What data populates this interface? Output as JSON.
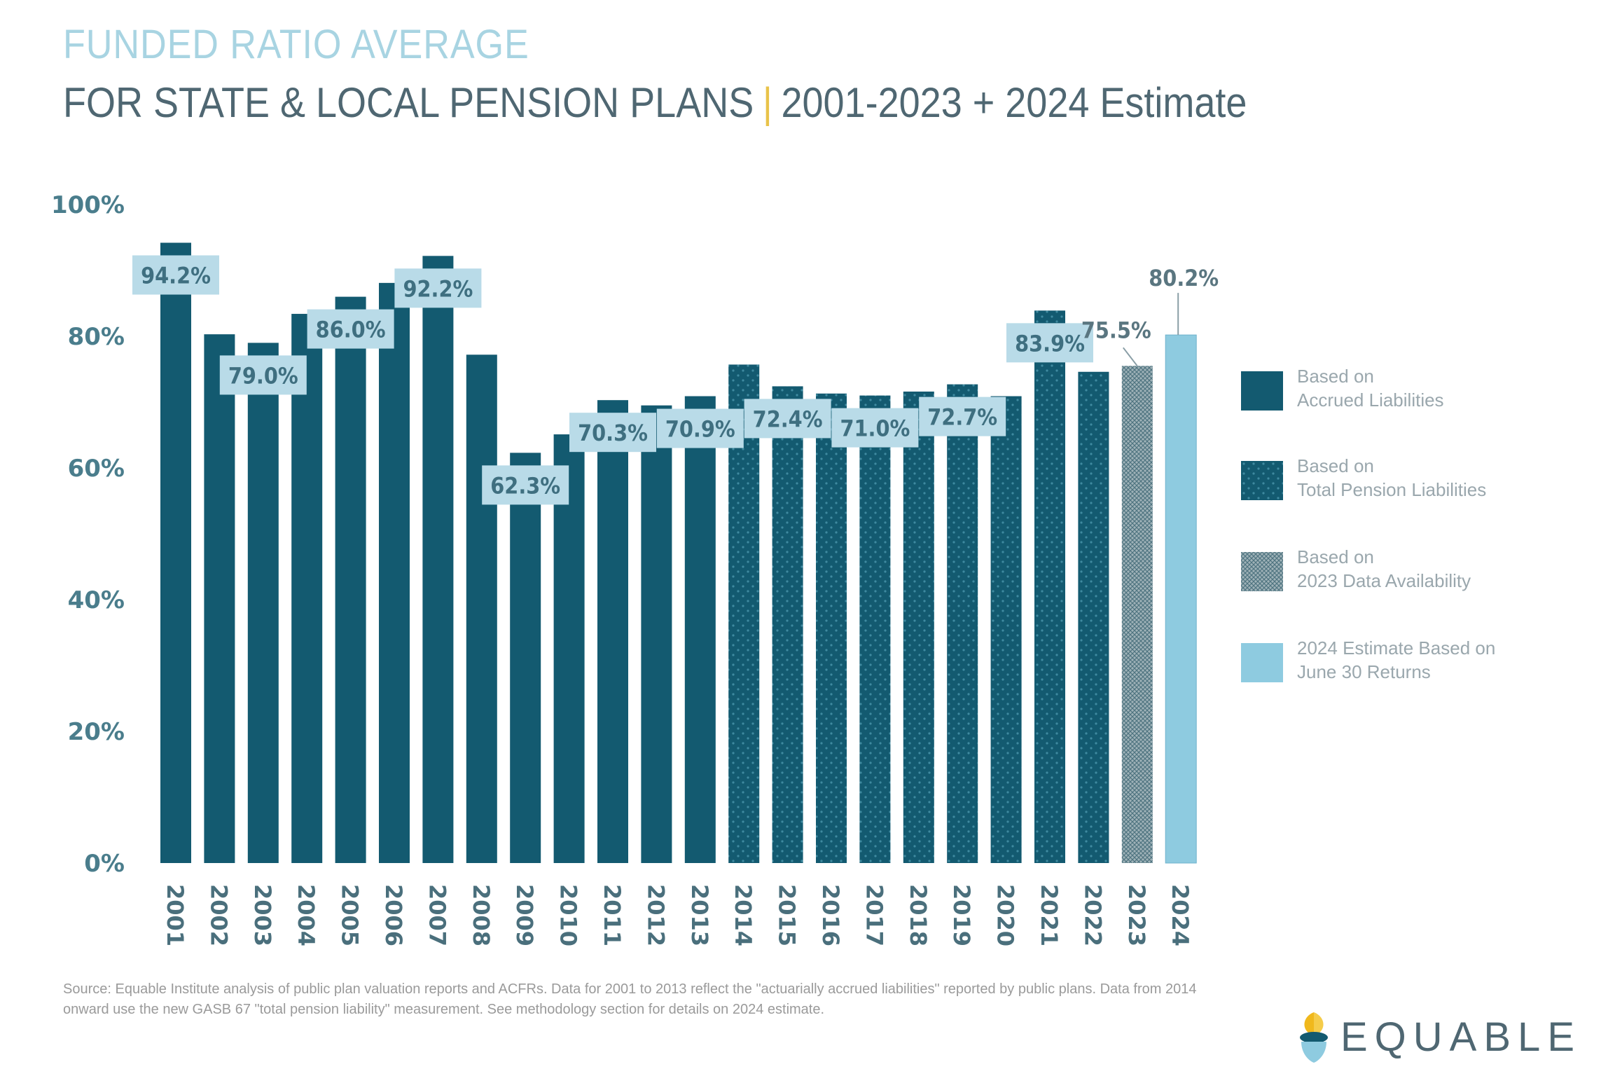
{
  "header": {
    "title": "FUNDED RATIO AVERAGE",
    "subtitle_main": "FOR STATE & LOCAL PENSION PLANS",
    "subtitle_sep": "|",
    "subtitle_range": "2001-2023 + 2024 Estimate"
  },
  "chart_data": {
    "type": "bar",
    "title": "Funded Ratio Average for State & Local Pension Plans 2001-2023 + 2024 Estimate",
    "xlabel": "",
    "ylabel": "",
    "ylim": [
      0,
      100
    ],
    "yticks": [
      "0%",
      "20%",
      "40%",
      "60%",
      "80%",
      "100%"
    ],
    "ytick_values": [
      0,
      20,
      40,
      60,
      80,
      100
    ],
    "categories": [
      "2001",
      "2002",
      "2003",
      "2004",
      "2005",
      "2006",
      "2007",
      "2008",
      "2009",
      "2010",
      "2011",
      "2012",
      "2013",
      "2014",
      "2015",
      "2016",
      "2017",
      "2018",
      "2019",
      "2020",
      "2021",
      "2022",
      "2023",
      "2024"
    ],
    "values": [
      94.2,
      80.3,
      79.0,
      83.4,
      86.0,
      88.1,
      92.2,
      77.2,
      62.3,
      65.1,
      70.3,
      69.5,
      70.9,
      75.7,
      72.4,
      71.3,
      71.0,
      71.6,
      72.7,
      70.9,
      83.9,
      74.6,
      75.5,
      80.2
    ],
    "series_type": [
      "accrued",
      "accrued",
      "accrued",
      "accrued",
      "accrued",
      "accrued",
      "accrued",
      "accrued",
      "accrued",
      "accrued",
      "accrued",
      "accrued",
      "accrued",
      "total",
      "total",
      "total",
      "total",
      "total",
      "total",
      "total",
      "total",
      "total",
      "availability",
      "estimate"
    ],
    "data_labels": {
      "2001": "94.2%",
      "2003": "79.0%",
      "2005": "86.0%",
      "2007": "92.2%",
      "2009": "62.3%",
      "2011": "70.3%",
      "2013": "70.9%",
      "2015": "72.4%",
      "2017": "71.0%",
      "2019": "72.7%",
      "2021": "83.9%",
      "2023": "75.5%",
      "2024": "80.2%"
    },
    "legend": [
      {
        "key": "accrued",
        "label": "Based on\nAccrued Liabilities"
      },
      {
        "key": "total",
        "label": "Based on\nTotal Pension Liabilities"
      },
      {
        "key": "availability",
        "label": "Based on\n2023 Data Availability"
      },
      {
        "key": "estimate",
        "label": "2024 Estimate Based on\nJune 30 Returns"
      }
    ],
    "legend_position": "right",
    "grid": false
  },
  "colors": {
    "bar_dark": "#135a70",
    "dot": "#3f8aa0",
    "hatch_bg": "#9fb2b8",
    "hatch_line": "#4f7480",
    "estimate": "#8ecbe0",
    "label_bg": "#b9dbe8",
    "label_text": "#3f6f80",
    "axis_text": "#4a7d8c"
  },
  "footer": {
    "source": "Source: Equable Institute analysis of public plan valuation reports and ACFRs. Data for 2001 to 2013 reflect the \"actuarially accrued liabilities\" reported by public plans. Data from 2014 onward use the new GASB 67 \"total pension liability\" measurement. See methodology section for details on 2024 estimate.",
    "logo_text": "EQUABLE"
  }
}
